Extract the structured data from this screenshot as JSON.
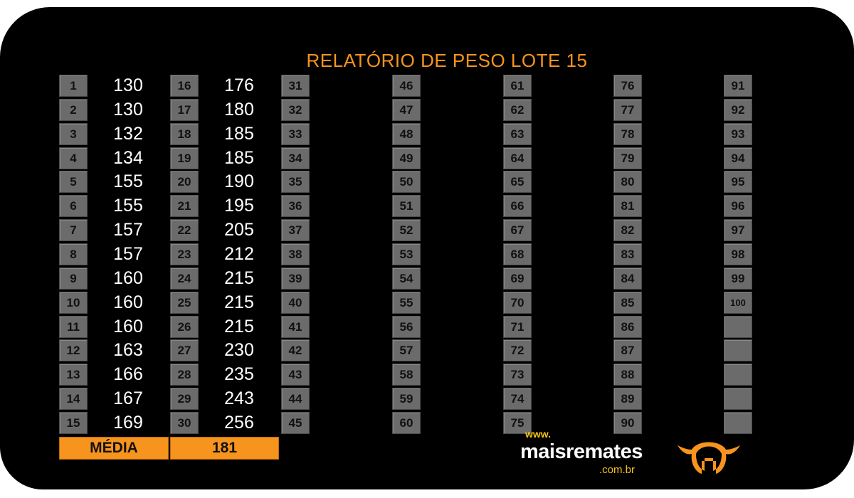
{
  "title": "RELATÓRIO DE PESO LOTE 15",
  "weights": [
    130,
    130,
    132,
    134,
    155,
    155,
    157,
    157,
    160,
    160,
    160,
    163,
    166,
    167,
    169,
    176,
    180,
    185,
    185,
    190,
    195,
    205,
    212,
    215,
    215,
    215,
    230,
    235,
    243,
    256
  ],
  "lot_numbers_total": 100,
  "empty_slots": 5,
  "media_label": "MÉDIA",
  "media_value": "181",
  "logo": {
    "www": "www.",
    "name": "maisremates",
    "domain": ".com.br"
  },
  "colors": {
    "accent": "#f7941d",
    "box": "#6b6b6b",
    "background": "#000000"
  }
}
